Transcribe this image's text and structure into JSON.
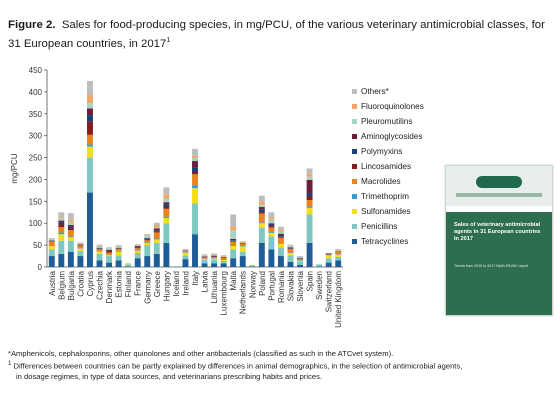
{
  "figure": {
    "label": "Figure 2.",
    "caption": "Sales for food-producing species, in mg/PCU, of the various veterinary antimicrobial classes, for 31 European countries, in 2017",
    "caption_sup": "1"
  },
  "footnotes": [
    "*Amphenicols, cephalosporins, other quinolones and other antibacterials (classified as such in the ATCvet system).",
    "Differences between countries can be partly explained by differences in animal demographics, in the selection of antimicrobial agents,",
    "in dosage regimes, in type of data sources, and veterinarians prescribing habits and prices."
  ],
  "footnote_mark": "1",
  "cover": {
    "title": "Sales of veterinary antimicrobial agents in 31 European countries in 2017",
    "subtitle": "Trends from 2010 to 2017 Ninth ESVAC report"
  },
  "colors": {
    "Tetracyclines": "#1f5d96",
    "Penicillins": "#7ec8c1",
    "Sulfonamides": "#f5dd1e",
    "Trimethoprim": "#3b9ad6",
    "Macrolides": "#e8831e",
    "Lincosamides": "#8b1a1a",
    "Polymyxins": "#1c3f78",
    "Aminoglycosides": "#6b1f3d",
    "Pleuromutilins": "#a8d5c3",
    "Fluoroquinolones": "#f0a868",
    "Others*": "#bdbdbd"
  },
  "chart_data": {
    "type": "bar",
    "stacked": true,
    "ylabel": "mg/PCU",
    "ylim": [
      0,
      450
    ],
    "yticks": [
      0,
      50,
      100,
      150,
      200,
      250,
      300,
      350,
      400,
      450
    ],
    "grid": false,
    "legend_position": "right",
    "categories": [
      "Austria",
      "Belgium",
      "Bulgaria",
      "Croatia",
      "Cyprus",
      "Czechia",
      "Denmark",
      "Estonia",
      "Finland",
      "France",
      "Germany",
      "Greece",
      "Hungary",
      "Iceland",
      "Ireland",
      "Italy",
      "Latvia",
      "Lithuania",
      "Luxembourg",
      "Malta",
      "Netherlands",
      "Norway",
      "Poland",
      "Portugal",
      "Romania",
      "Slovakia",
      "Slovenia",
      "Spain",
      "Sweden",
      "Switzerland",
      "United Kingdom"
    ],
    "series": [
      {
        "name": "Tetracyclines",
        "values": [
          25,
          30,
          35,
          25,
          170,
          15,
          10,
          15,
          1,
          20,
          25,
          30,
          55,
          0,
          18,
          75,
          8,
          8,
          8,
          20,
          25,
          1,
          55,
          40,
          25,
          12,
          5,
          55,
          1,
          10,
          15
        ]
      },
      {
        "name": "Penicillins",
        "values": [
          15,
          30,
          25,
          12,
          80,
          15,
          15,
          12,
          5,
          12,
          25,
          25,
          45,
          2,
          8,
          70,
          8,
          8,
          6,
          20,
          10,
          3,
          35,
          30,
          20,
          15,
          8,
          65,
          5,
          10,
          8
        ]
      },
      {
        "name": "Sulfonamides",
        "values": [
          8,
          15,
          8,
          5,
          25,
          5,
          2,
          8,
          1,
          5,
          5,
          8,
          12,
          0,
          7,
          35,
          2,
          3,
          2,
          8,
          12,
          1,
          10,
          8,
          8,
          5,
          2,
          15,
          0,
          6,
          5
        ]
      },
      {
        "name": "Trimethoprim",
        "values": [
          2,
          4,
          2,
          1,
          5,
          1,
          1,
          2,
          0,
          1,
          1,
          2,
          3,
          0,
          2,
          7,
          1,
          1,
          1,
          2,
          3,
          0,
          2,
          2,
          2,
          1,
          1,
          3,
          0,
          1,
          1
        ]
      },
      {
        "name": "Macrolides",
        "values": [
          8,
          12,
          14,
          6,
          22,
          5,
          5,
          4,
          1,
          5,
          5,
          14,
          18,
          0,
          2,
          25,
          3,
          3,
          4,
          8,
          3,
          0,
          20,
          10,
          12,
          8,
          2,
          15,
          0,
          2,
          5
        ]
      },
      {
        "name": "Lincosamides",
        "values": [
          1,
          6,
          4,
          1,
          30,
          1,
          3,
          1,
          0,
          1,
          1,
          3,
          4,
          0,
          0,
          5,
          1,
          1,
          1,
          2,
          0,
          0,
          3,
          3,
          2,
          1,
          1,
          8,
          0,
          0,
          1
        ]
      },
      {
        "name": "Polymyxins",
        "values": [
          1,
          5,
          4,
          1,
          15,
          1,
          0,
          1,
          0,
          2,
          3,
          2,
          6,
          0,
          0,
          10,
          0,
          1,
          0,
          1,
          1,
          0,
          7,
          4,
          4,
          1,
          1,
          8,
          0,
          0,
          0
        ]
      },
      {
        "name": "Aminoglycosides",
        "values": [
          1,
          4,
          4,
          1,
          15,
          1,
          3,
          1,
          0,
          2,
          1,
          4,
          5,
          0,
          1,
          15,
          1,
          1,
          1,
          3,
          1,
          0,
          5,
          3,
          3,
          2,
          1,
          30,
          0,
          2,
          1
        ]
      },
      {
        "name": "Pleuromutilins",
        "values": [
          2,
          5,
          6,
          1,
          12,
          3,
          3,
          2,
          0,
          1,
          5,
          2,
          8,
          0,
          1,
          7,
          2,
          1,
          1,
          20,
          1,
          0,
          5,
          8,
          5,
          3,
          1,
          7,
          0,
          1,
          2
        ]
      },
      {
        "name": "Fluoroquinolones",
        "values": [
          1,
          3,
          6,
          1,
          20,
          1,
          0,
          1,
          0,
          1,
          1,
          6,
          10,
          0,
          1,
          5,
          1,
          1,
          1,
          9,
          1,
          0,
          8,
          5,
          5,
          1,
          1,
          7,
          0,
          0,
          1
        ]
      },
      {
        "name": "Others*",
        "values": [
          2,
          11,
          15,
          2,
          31,
          3,
          3,
          3,
          0,
          2,
          3,
          5,
          16,
          0,
          1,
          16,
          2,
          3,
          2,
          27,
          2,
          0,
          13,
          12,
          6,
          2,
          2,
          12,
          0,
          0,
          2
        ]
      }
    ]
  }
}
